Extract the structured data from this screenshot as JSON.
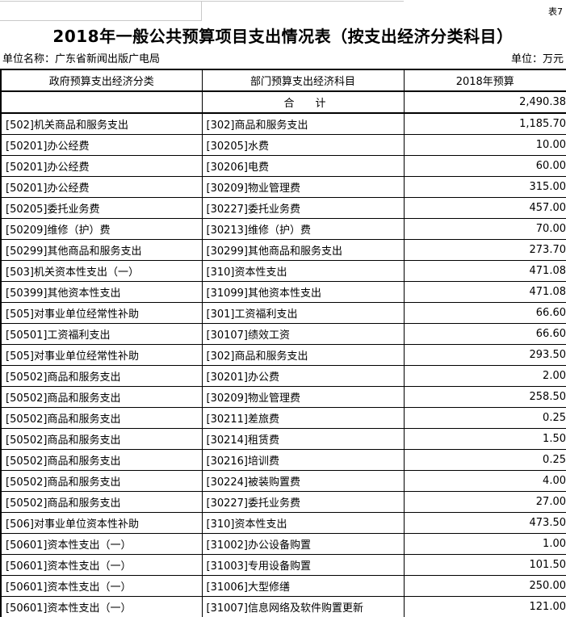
{
  "page": {
    "corner_label": "表7",
    "title": "2018年一般公共预算项目支出情况表（按支出经济分类科目）",
    "unit_name": "单位名称：广东省新闻出版广电局",
    "unit": "单位：万元"
  },
  "table": {
    "columns": [
      "政府预算支出经济分类",
      "部门预算支出经济科目",
      "2018年预算"
    ],
    "rows": [
      {
        "gov": "",
        "dept": "合　　计",
        "amount": "2,490.38",
        "total": true
      },
      {
        "gov": "[502]机关商品和服务支出",
        "dept": "[302]商品和服务支出",
        "amount": "1,185.70",
        "indent": false
      },
      {
        "gov": "[50201]办公经费",
        "dept": "[30205]水费",
        "amount": "10.00",
        "indent": true
      },
      {
        "gov": "[50201]办公经费",
        "dept": "[30206]电费",
        "amount": "60.00",
        "indent": true
      },
      {
        "gov": "[50201]办公经费",
        "dept": "[30209]物业管理费",
        "amount": "315.00",
        "indent": true
      },
      {
        "gov": "[50205]委托业务费",
        "dept": "[30227]委托业务费",
        "amount": "457.00",
        "indent": true
      },
      {
        "gov": "[50209]维修（护）费",
        "dept": "[30213]维修（护）费",
        "amount": "70.00",
        "indent": true
      },
      {
        "gov": "[50299]其他商品和服务支出",
        "dept": "[30299]其他商品和服务支出",
        "amount": "273.70",
        "indent": true
      },
      {
        "gov": "[503]机关资本性支出（一）",
        "dept": "[310]资本性支出",
        "amount": "471.08",
        "indent": false
      },
      {
        "gov": "[50399]其他资本性支出",
        "dept": "[31099]其他资本性支出",
        "amount": "471.08",
        "indent": true
      },
      {
        "gov": "[505]对事业单位经常性补助",
        "dept": "[301]工资福利支出",
        "amount": "66.60",
        "indent": false
      },
      {
        "gov": "[50501]工资福利支出",
        "dept": "[30107]绩效工资",
        "amount": "66.60",
        "indent": true
      },
      {
        "gov": "[505]对事业单位经常性补助",
        "dept": "[302]商品和服务支出",
        "amount": "293.50",
        "indent": false
      },
      {
        "gov": "[50502]商品和服务支出",
        "dept": "[30201]办公费",
        "amount": "2.00",
        "indent": true
      },
      {
        "gov": "[50502]商品和服务支出",
        "dept": "[30209]物业管理费",
        "amount": "258.50",
        "indent": true
      },
      {
        "gov": "[50502]商品和服务支出",
        "dept": "[30211]差旅费",
        "amount": "0.25",
        "indent": true
      },
      {
        "gov": "[50502]商品和服务支出",
        "dept": "[30214]租赁费",
        "amount": "1.50",
        "indent": true
      },
      {
        "gov": "[50502]商品和服务支出",
        "dept": "[30216]培训费",
        "amount": "0.25",
        "indent": true
      },
      {
        "gov": "[50502]商品和服务支出",
        "dept": "[30224]被装购置费",
        "amount": "4.00",
        "indent": true
      },
      {
        "gov": "[50502]商品和服务支出",
        "dept": "[30227]委托业务费",
        "amount": "27.00",
        "indent": true
      },
      {
        "gov": "[506]对事业单位资本性补助",
        "dept": "[310]资本性支出",
        "amount": "473.50",
        "indent": false
      },
      {
        "gov": "[50601]资本性支出（一）",
        "dept": "[31002]办公设备购置",
        "amount": "1.00",
        "indent": true
      },
      {
        "gov": "[50601]资本性支出（一）",
        "dept": "[31003]专用设备购置",
        "amount": "101.50",
        "indent": true
      },
      {
        "gov": "[50601]资本性支出（一）",
        "dept": "[31006]大型修缮",
        "amount": "250.00",
        "indent": true
      },
      {
        "gov": "[50601]资本性支出（一）",
        "dept": "[31007]信息网络及软件购置更新",
        "amount": "121.00",
        "indent": true
      }
    ]
  },
  "colors": {
    "text": "#000000",
    "border": "#000000",
    "remnant_border": "#c9c9c9",
    "background": "#ffffff"
  }
}
